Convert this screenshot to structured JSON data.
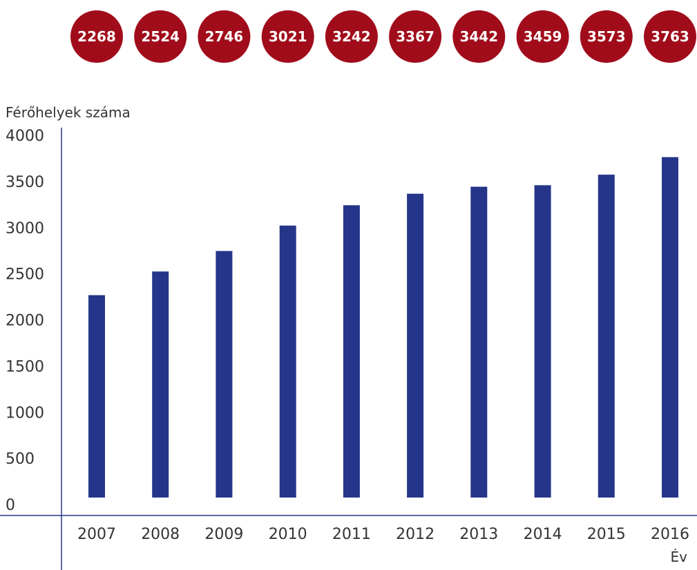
{
  "chart_data": {
    "type": "bar",
    "categories": [
      "2007",
      "2008",
      "2009",
      "2010",
      "2011",
      "2012",
      "2013",
      "2014",
      "2015",
      "2016"
    ],
    "values": [
      2268,
      2524,
      2746,
      3021,
      3242,
      3367,
      3442,
      3459,
      3573,
      3763
    ],
    "value_labels": [
      "2268",
      "2524",
      "2746",
      "3021",
      "3242",
      "3367",
      "3442",
      "3459",
      "3573",
      "3763"
    ],
    "xlabel": "Év",
    "ylabel": "Férőhelyek száma",
    "ylim": [
      0,
      4000
    ],
    "yticks": [
      "0",
      "500",
      "1000",
      "1500",
      "2000",
      "2500",
      "3000",
      "3500",
      "4000"
    ],
    "grid": false,
    "colors": {
      "bar": "#25368a",
      "badge": "#a10c1b",
      "axis": "#25368a"
    }
  }
}
